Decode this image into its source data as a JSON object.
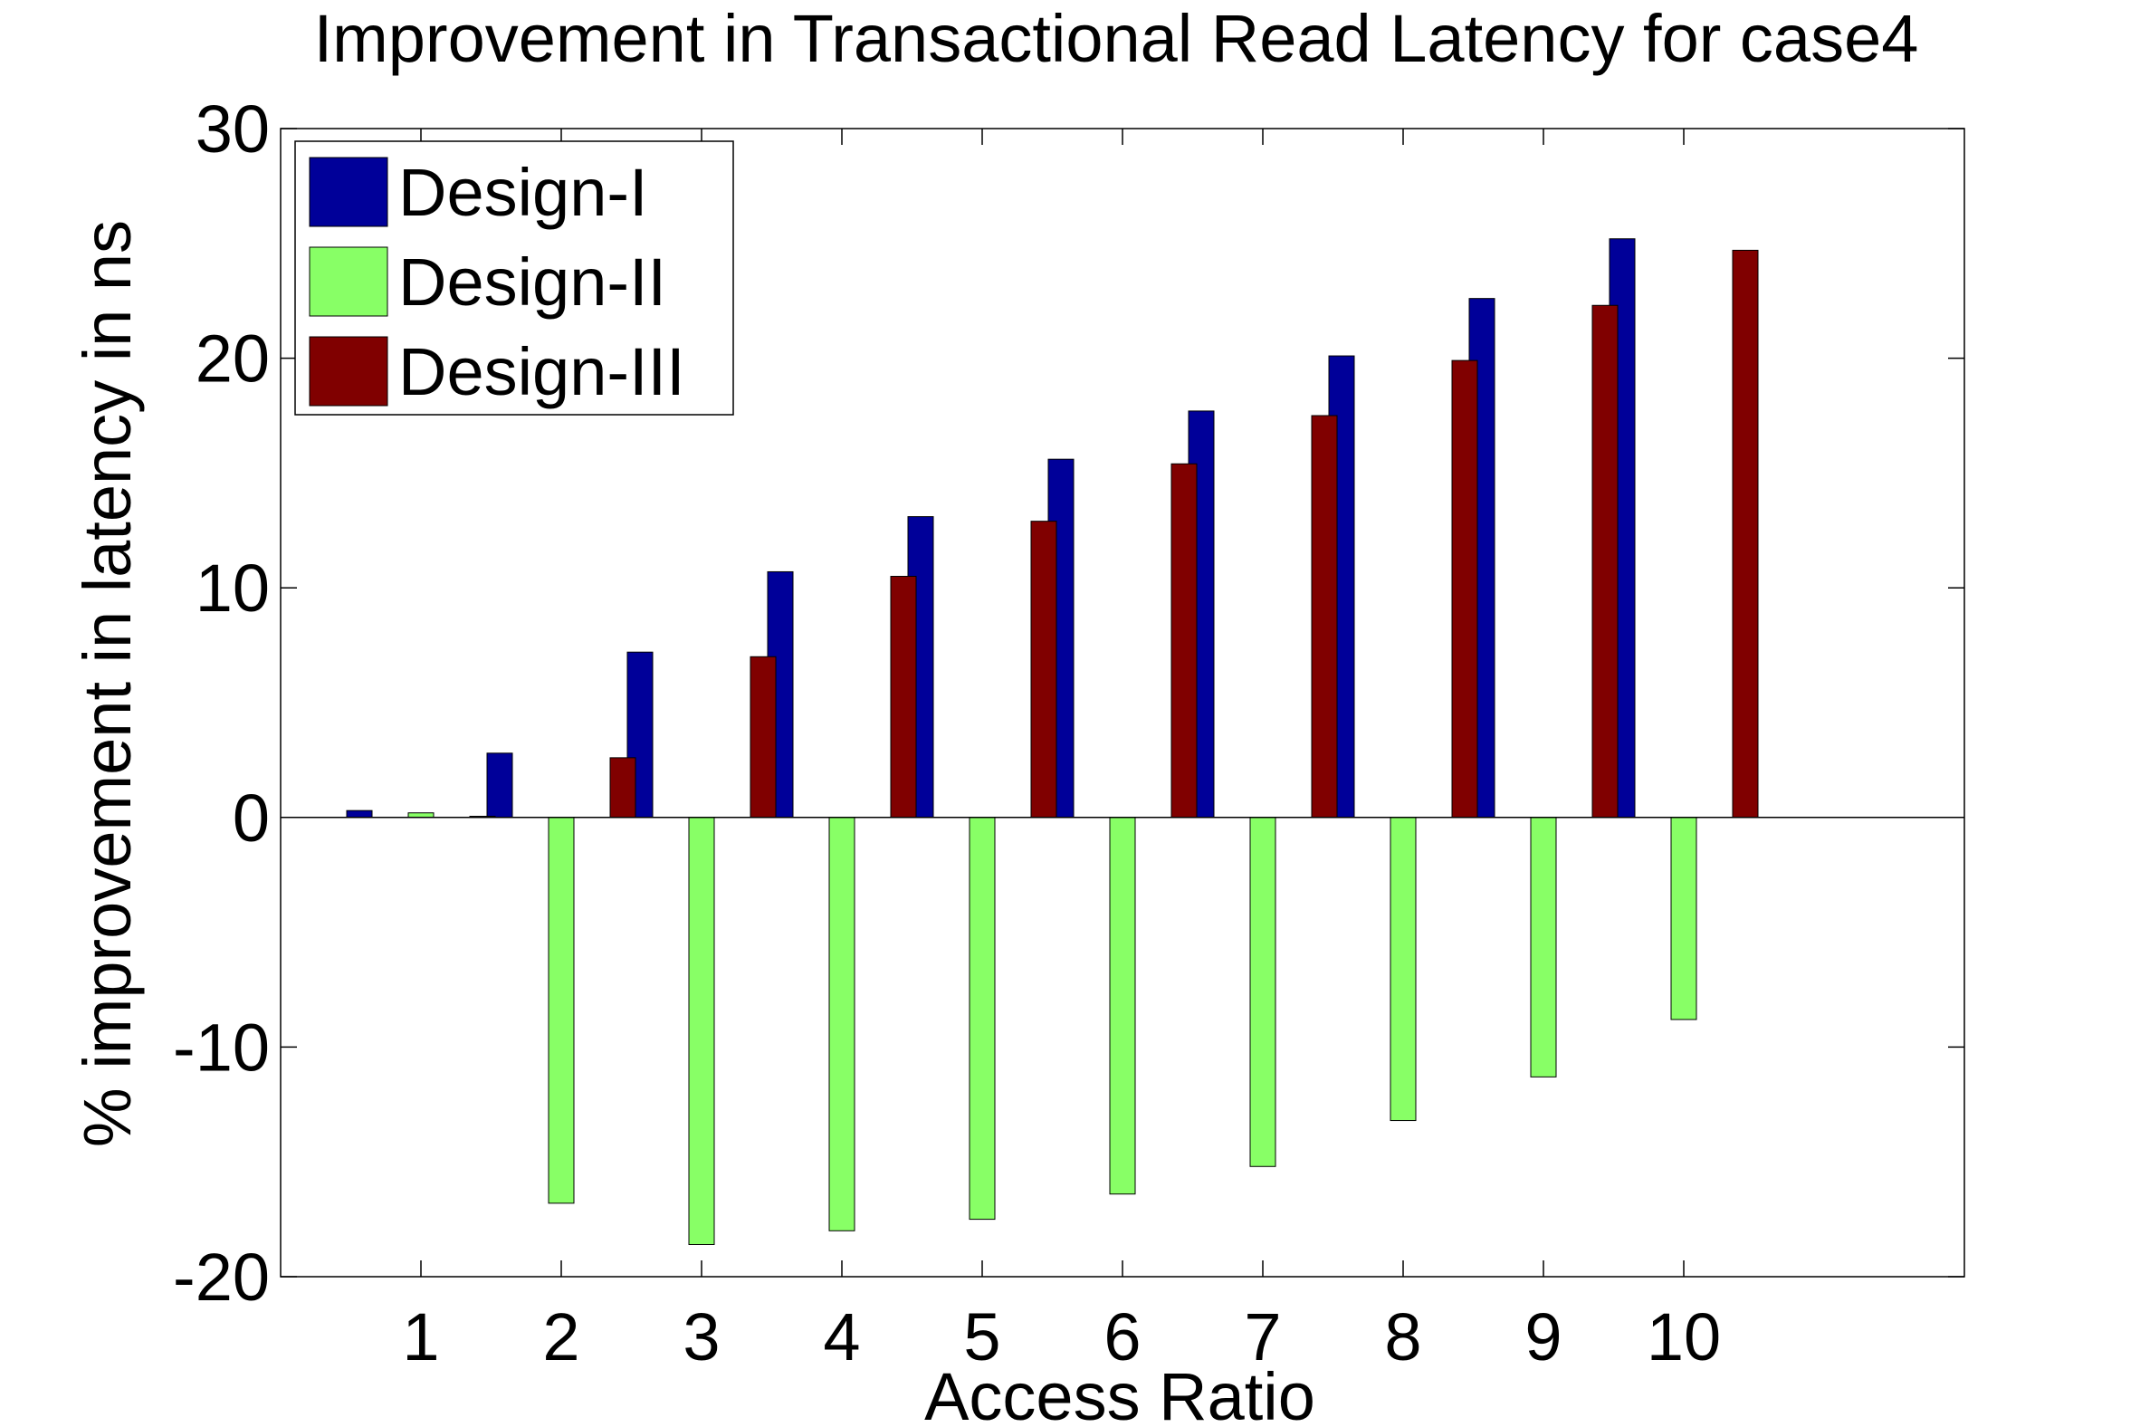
{
  "chart_data": {
    "type": "bar",
    "title": "Improvement in Transactional Read Latency for case4",
    "xlabel": "Access Ratio",
    "ylabel": "% improvement in latency in ns",
    "categories": [
      "1",
      "2",
      "3",
      "4",
      "5",
      "6",
      "7",
      "8",
      "9",
      "10"
    ],
    "xlim": [
      0,
      12
    ],
    "ylim": [
      -20,
      30
    ],
    "yticks": [
      -20,
      -10,
      0,
      10,
      20,
      30
    ],
    "yticklabels": [
      "-20",
      "-10",
      "0",
      "10",
      "20",
      "30"
    ],
    "grid": false,
    "legend_position": "top-left",
    "series": [
      {
        "name": "Design-I",
        "color": "#000099",
        "values": [
          0.3,
          2.8,
          7.2,
          10.7,
          13.1,
          15.6,
          17.7,
          20.1,
          22.6,
          25.2
        ]
      },
      {
        "name": "Design-II",
        "color": "#88ff66",
        "values": [
          0.2,
          -16.8,
          -18.6,
          -18.0,
          -17.5,
          -16.4,
          -15.2,
          -13.2,
          -11.3,
          -8.8
        ]
      },
      {
        "name": "Design-III",
        "color": "#800000",
        "values": [
          0.05,
          2.6,
          7.0,
          10.5,
          12.9,
          15.4,
          17.5,
          19.9,
          22.3,
          24.7
        ]
      }
    ]
  }
}
